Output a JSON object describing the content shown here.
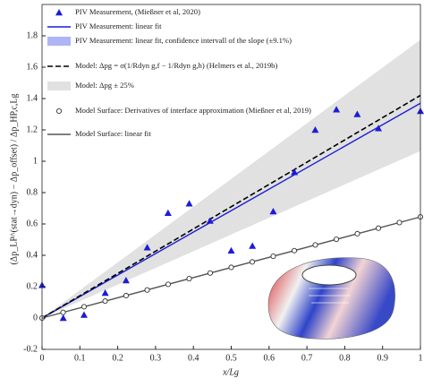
{
  "chart_data": {
    "type": "line",
    "xlabel": "x/Lg",
    "ylabel": "(Δp_LP^(stat→dyn) − Δp_offset) / Δp_HP,c,Lg",
    "xlim": [
      0,
      1
    ],
    "xticks": [
      0,
      0.1,
      0.2,
      0.3,
      0.4,
      0.5,
      0.6,
      0.7,
      0.8,
      0.9,
      1
    ],
    "ylim": [
      -0.2,
      2.0
    ],
    "yticks": [
      -0.2,
      0,
      0.2,
      0.4,
      0.6,
      0.8,
      1,
      1.2,
      1.4,
      1.6,
      1.8
    ],
    "series": [
      {
        "name": "PIV Measurement, (Mießner et al, 2020)",
        "kind": "scatter",
        "marker": "triangle",
        "color": "#1c1cd6",
        "x": [
          0,
          0.056,
          0.111,
          0.167,
          0.222,
          0.278,
          0.333,
          0.389,
          0.444,
          0.5,
          0.556,
          0.611,
          0.667,
          0.722,
          0.778,
          0.833,
          0.889,
          1.0
        ],
        "values": [
          0.21,
          0.0,
          0.02,
          0.16,
          0.24,
          0.45,
          0.67,
          0.73,
          0.62,
          0.43,
          0.46,
          0.68,
          0.93,
          1.2,
          1.33,
          1.3,
          1.21,
          1.32
        ]
      },
      {
        "name": "PIV Measurement: linear fit",
        "kind": "line",
        "color": "#1c1cd6",
        "dash": false,
        "x": [
          0,
          1
        ],
        "values": [
          0,
          1.37
        ]
      },
      {
        "name": "PIV Measurement: linear fit, confidence intervall of the slope (±9.1%)",
        "kind": "band",
        "color": "#aeb4f4",
        "x": [
          0,
          1
        ],
        "lower": [
          0,
          1.245
        ],
        "upper": [
          0,
          1.495
        ]
      },
      {
        "name": "Model: Δpg = σ(1/Rdyn g,f − 1/Rdyn g,h) (Helmers et al., 2019b)",
        "kind": "line",
        "color": "#000000",
        "dash": true,
        "x": [
          0,
          1
        ],
        "values": [
          0,
          1.42
        ]
      },
      {
        "name": "Model: Δpg ± 25%",
        "kind": "band",
        "color": "#e1e1e1",
        "x": [
          0,
          1
        ],
        "lower": [
          0,
          1.065
        ],
        "upper": [
          0,
          1.775
        ]
      },
      {
        "name": "Model Surface: Derivatives of interface approximation (Mießner et al, 2019)",
        "kind": "scatter",
        "marker": "circle",
        "color": "#333333",
        "x": [
          0,
          0.0556,
          0.1111,
          0.1667,
          0.2222,
          0.2778,
          0.3333,
          0.3889,
          0.4444,
          0.5,
          0.5556,
          0.6111,
          0.6667,
          0.7222,
          0.7778,
          0.8333,
          0.8889,
          0.9444,
          1.0
        ],
        "values": [
          0,
          0.036,
          0.072,
          0.108,
          0.143,
          0.179,
          0.215,
          0.251,
          0.287,
          0.323,
          0.358,
          0.394,
          0.43,
          0.466,
          0.502,
          0.538,
          0.573,
          0.609,
          0.645
        ]
      },
      {
        "name": "Model Surface: linear fit",
        "kind": "line",
        "color": "#555555",
        "dash": false,
        "x": [
          0,
          1
        ],
        "values": [
          0,
          0.645
        ]
      }
    ],
    "grid": false,
    "legend": "upper left"
  }
}
